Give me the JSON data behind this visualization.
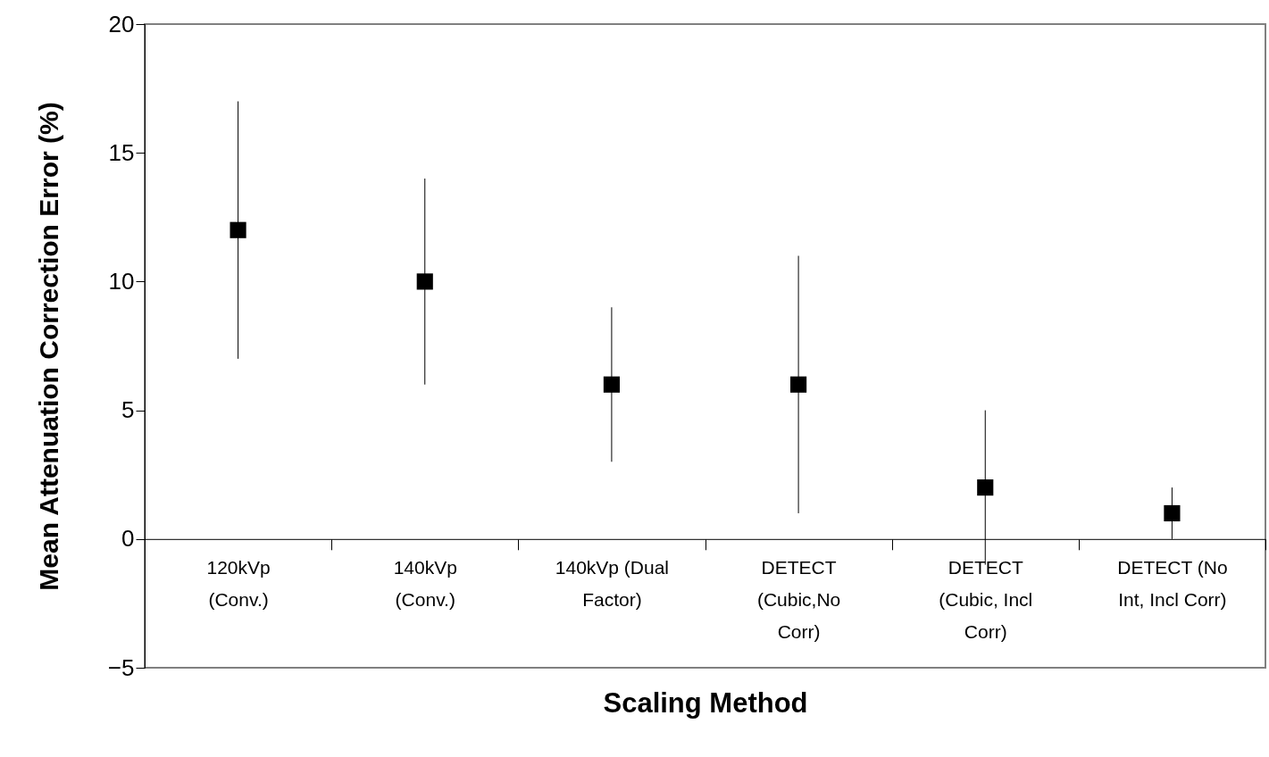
{
  "chart_data": {
    "type": "scatter",
    "xlabel": "Scaling Method",
    "ylabel": "Mean Attenuation Correction Error (%)",
    "categories": [
      "120kVp\n(Conv.)",
      "140kVp\n(Conv.)",
      "140kVp (Dual\nFactor)",
      "DETECT\n(Cubic,No\nCorr)",
      "DETECT\n(Cubic, Incl\nCorr)",
      "DETECT (No\nInt, Incl Corr)"
    ],
    "values": [
      12,
      10,
      6,
      6,
      2,
      1
    ],
    "errors": [
      5,
      4,
      3,
      5,
      3,
      1
    ],
    "color": "#000000",
    "marker": "square",
    "grid": false,
    "ylim": [
      -5,
      20
    ],
    "yticks": [
      -5,
      0,
      5,
      10,
      15,
      20
    ]
  }
}
